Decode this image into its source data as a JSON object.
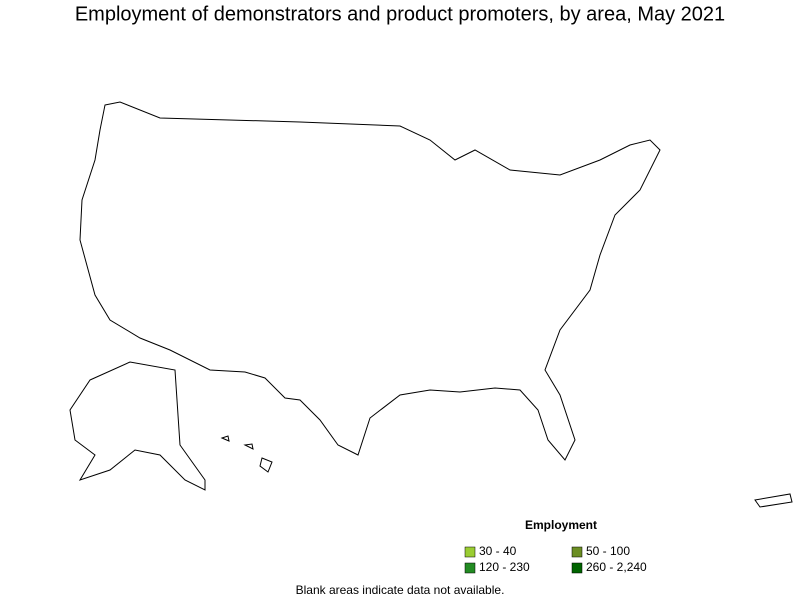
{
  "header": {
    "title": "Employment of demonstrators and product promoters, by area, May 2021"
  },
  "legend": {
    "title": "Employment",
    "items": [
      {
        "label": "30 - 40",
        "color": "#9acd32"
      },
      {
        "label": "50 - 100",
        "color": "#6b8e23"
      },
      {
        "label": "120 - 230",
        "color": "#228b22"
      },
      {
        "label": "260 - 2,240",
        "color": "#006400"
      }
    ]
  },
  "footnote": "Blank areas indicate data not available."
}
